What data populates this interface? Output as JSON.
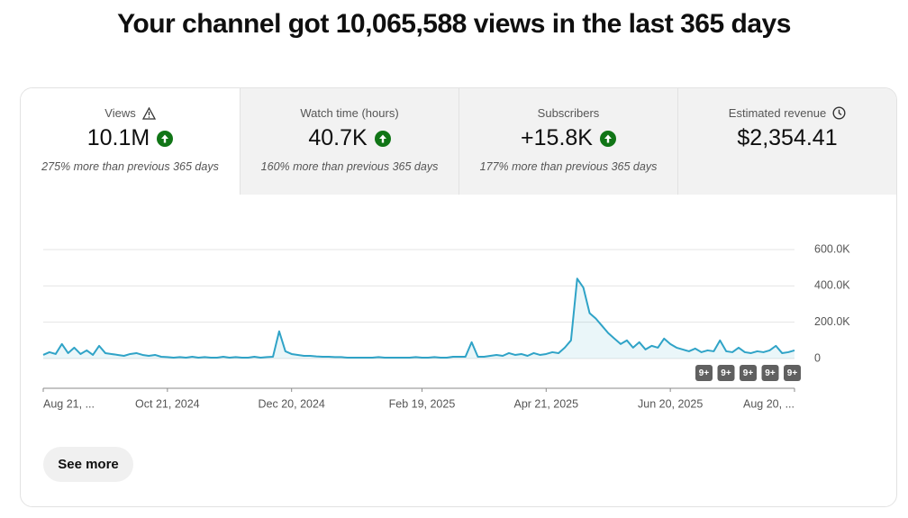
{
  "header": {
    "title": "Your channel got 10,065,588 views in the last 365 days"
  },
  "metrics": [
    {
      "label": "Views",
      "value": "10.1M",
      "change": "275% more than previous 365 days"
    },
    {
      "label": "Watch time (hours)",
      "value": "40.7K",
      "change": "160% more than previous 365 days"
    },
    {
      "label": "Subscribers",
      "value": "+15.8K",
      "change": "177% more than previous 365 days"
    },
    {
      "label": "Estimated revenue",
      "value": "$2,354.41"
    }
  ],
  "chart_data": {
    "type": "line",
    "color": "#2fa3c7",
    "grid": true,
    "categories": [
      "Aug 21, ...",
      null,
      null,
      null,
      null,
      null,
      null,
      null,
      null,
      null,
      null,
      null,
      null,
      null,
      null,
      null,
      null,
      null,
      null,
      null,
      "Oct 21, 2024",
      null,
      null,
      null,
      null,
      null,
      null,
      null,
      null,
      null,
      null,
      null,
      null,
      null,
      null,
      null,
      null,
      null,
      null,
      null,
      "Dec 20, 2024",
      null,
      null,
      null,
      null,
      null,
      null,
      null,
      null,
      null,
      null,
      null,
      null,
      null,
      null,
      null,
      null,
      null,
      null,
      null,
      null,
      "Feb 19, 2025",
      null,
      null,
      null,
      null,
      null,
      null,
      null,
      null,
      null,
      null,
      null,
      null,
      null,
      null,
      null,
      null,
      null,
      null,
      null,
      "Apr 21, 2025",
      null,
      null,
      null,
      null,
      null,
      null,
      null,
      null,
      null,
      null,
      null,
      null,
      null,
      null,
      null,
      null,
      null,
      null,
      null,
      "Jun 20, 2025",
      null,
      null,
      null,
      null,
      null,
      null,
      null,
      null,
      null,
      null,
      null,
      null,
      null,
      null,
      null,
      null,
      null,
      null,
      null,
      "Aug 20, ..."
    ],
    "values": [
      20000,
      35000,
      25000,
      80000,
      30000,
      60000,
      25000,
      45000,
      20000,
      70000,
      30000,
      25000,
      20000,
      15000,
      25000,
      30000,
      20000,
      15000,
      20000,
      10000,
      8000,
      5000,
      8000,
      5000,
      10000,
      5000,
      8000,
      5000,
      5000,
      10000,
      5000,
      8000,
      5000,
      5000,
      10000,
      5000,
      8000,
      10000,
      150000,
      40000,
      25000,
      20000,
      15000,
      15000,
      12000,
      10000,
      10000,
      8000,
      8000,
      5000,
      5000,
      5000,
      5000,
      5000,
      8000,
      5000,
      5000,
      5000,
      5000,
      5000,
      8000,
      5000,
      5000,
      8000,
      5000,
      5000,
      10000,
      10000,
      10000,
      90000,
      10000,
      10000,
      15000,
      20000,
      15000,
      30000,
      20000,
      25000,
      15000,
      30000,
      20000,
      25000,
      35000,
      30000,
      60000,
      100000,
      440000,
      390000,
      250000,
      220000,
      180000,
      140000,
      110000,
      80000,
      100000,
      60000,
      90000,
      50000,
      70000,
      60000,
      110000,
      80000,
      60000,
      50000,
      40000,
      55000,
      35000,
      45000,
      40000,
      100000,
      40000,
      35000,
      60000,
      35000,
      30000,
      40000,
      35000,
      45000,
      70000,
      30000,
      35000,
      45000
    ],
    "ylim": [
      0,
      600000
    ],
    "yticks": [
      0,
      {
        "value": 200000,
        "label": "200.0K"
      },
      {
        "value": 400000,
        "label": "400.0K"
      },
      {
        "value": 600000,
        "label": "600.0K"
      }
    ],
    "annotations": [
      "9+",
      "9+",
      "9+",
      "9+",
      "9+"
    ]
  },
  "button": {
    "label": "See more"
  }
}
